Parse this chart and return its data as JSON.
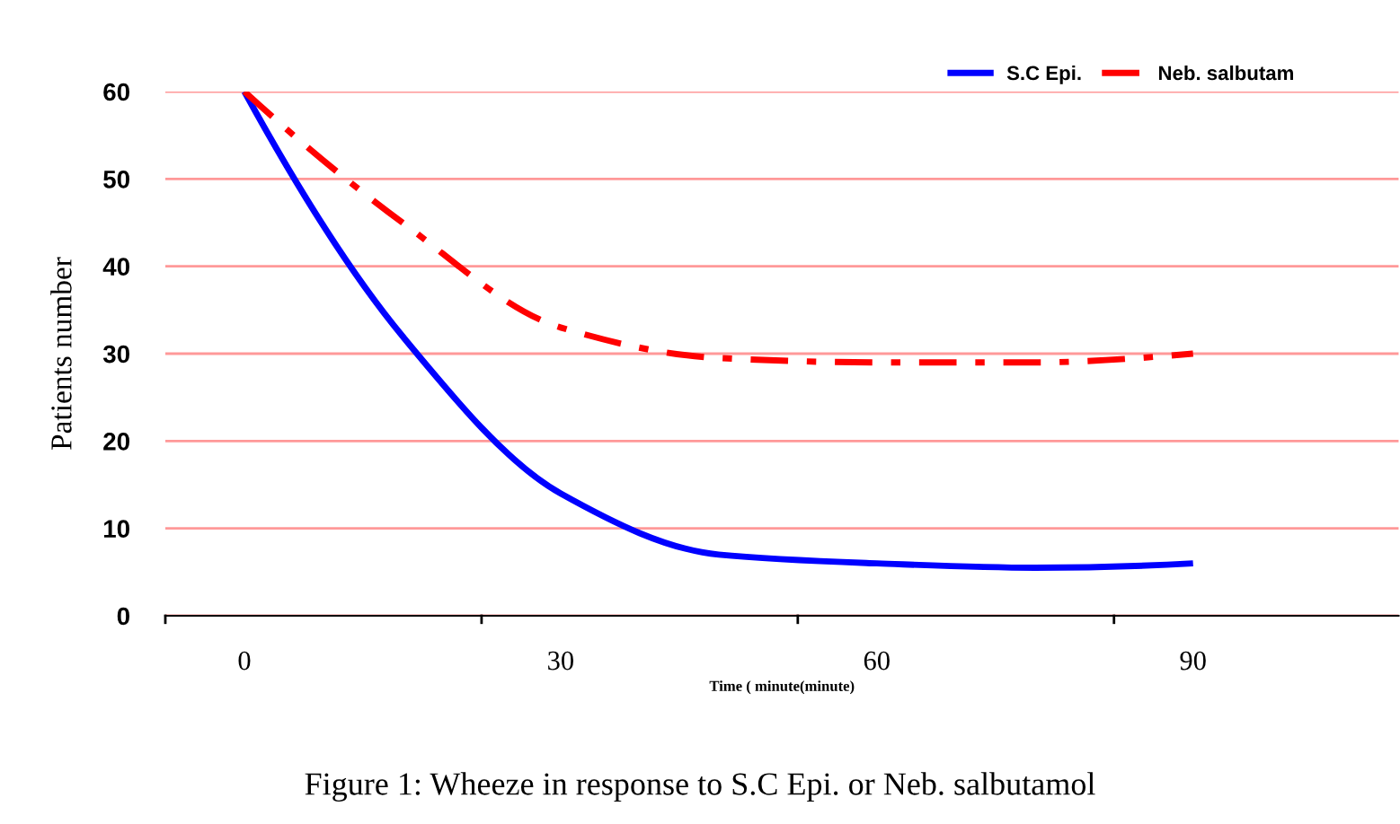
{
  "chart_data": {
    "type": "line",
    "xlabel": "Time ( minute(minute)",
    "ylabel": "Patients number",
    "categories": [
      "0",
      null,
      "30",
      null,
      "60",
      null,
      "90"
    ],
    "series": [
      {
        "name": "S.C Epi.",
        "color": "#0000ff",
        "line_style": "solid",
        "values": [
          60,
          32,
          14,
          7,
          6,
          5.5,
          6
        ]
      },
      {
        "name": "Neb. salbutam",
        "color": "#ff0000",
        "line_style": "dashdot",
        "values": [
          60,
          45,
          33,
          29.5,
          29,
          29,
          30
        ]
      }
    ],
    "ylim": [
      0,
      60
    ],
    "yticks": [
      0,
      10,
      20,
      30,
      40,
      50,
      60
    ],
    "grid": "y",
    "legend": "top right",
    "marker": "none",
    "annotations": [
      "Figure 1: Wheeze in response to S.C Epi. or Neb. salbutamol"
    ]
  }
}
